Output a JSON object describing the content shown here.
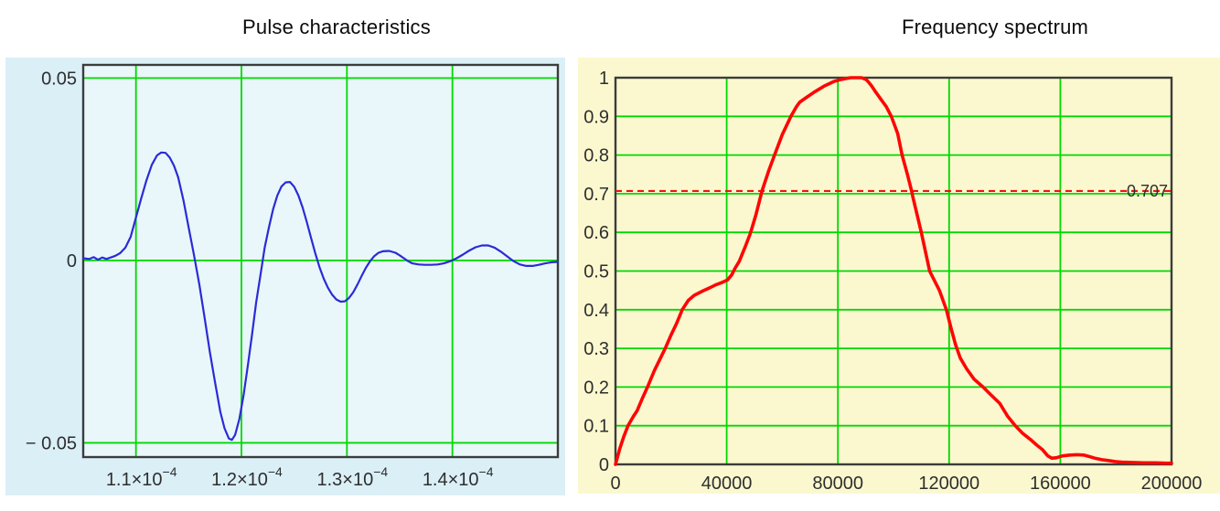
{
  "chart_data": [
    {
      "type": "line",
      "title": "Pulse characteristics",
      "xlabel": "",
      "ylabel": "",
      "legend": "none",
      "grid": "on",
      "panel_bg": "#dbeff7",
      "plot_bg": "#e9f7fa",
      "grid_color": "#00d900",
      "border_color": "#3c3c3c",
      "x_range": [
        1.05,
        1.5
      ],
      "y_range": [
        -0.0539,
        0.0536
      ],
      "x_gridlines": [
        1.1,
        1.2,
        1.3,
        1.4
      ],
      "y_gridlines": [
        0.05,
        0,
        -0.05
      ],
      "x_ticks": [
        {
          "v": 1.1,
          "base": "1.1×10",
          "sup": "−4"
        },
        {
          "v": 1.2,
          "base": "1.2×10",
          "sup": "−4"
        },
        {
          "v": 1.3,
          "base": "1.3×10",
          "sup": "−4"
        },
        {
          "v": 1.4,
          "base": "1.4×10",
          "sup": "−4"
        }
      ],
      "y_ticks": [
        {
          "v": 0.05,
          "label": "0.05"
        },
        {
          "v": 0,
          "label": "0"
        },
        {
          "v": -0.05,
          "label": "− 0.05"
        }
      ],
      "series": [
        {
          "name": "pulse",
          "color": "#2b2bd6",
          "width": 2.2,
          "points": [
            [
              1.05,
              0.0006
            ],
            [
              1.056,
              0.0004
            ],
            [
              1.06,
              0.0009
            ],
            [
              1.064,
              0.0002
            ],
            [
              1.068,
              0.0008
            ],
            [
              1.072,
              0.0004
            ],
            [
              1.076,
              0.0008
            ],
            [
              1.08,
              0.0012
            ],
            [
              1.085,
              0.002
            ],
            [
              1.09,
              0.0035
            ],
            [
              1.095,
              0.0065
            ],
            [
              1.1,
              0.0118
            ],
            [
              1.105,
              0.017
            ],
            [
              1.11,
              0.022
            ],
            [
              1.115,
              0.0262
            ],
            [
              1.12,
              0.0288
            ],
            [
              1.124,
              0.0296
            ],
            [
              1.128,
              0.0295
            ],
            [
              1.132,
              0.0282
            ],
            [
              1.136,
              0.026
            ],
            [
              1.14,
              0.0228
            ],
            [
              1.145,
              0.0165
            ],
            [
              1.15,
              0.009
            ],
            [
              1.155,
              0.0015
            ],
            [
              1.16,
              -0.0065
            ],
            [
              1.165,
              -0.0155
            ],
            [
              1.17,
              -0.025
            ],
            [
              1.175,
              -0.0335
            ],
            [
              1.18,
              -0.0415
            ],
            [
              1.184,
              -0.046
            ],
            [
              1.188,
              -0.0488
            ],
            [
              1.191,
              -0.0492
            ],
            [
              1.194,
              -0.0478
            ],
            [
              1.198,
              -0.0435
            ],
            [
              1.202,
              -0.037
            ],
            [
              1.206,
              -0.029
            ],
            [
              1.21,
              -0.0205
            ],
            [
              1.214,
              -0.0115
            ],
            [
              1.218,
              -0.004
            ],
            [
              1.222,
              0.0035
            ],
            [
              1.226,
              0.009
            ],
            [
              1.23,
              0.014
            ],
            [
              1.234,
              0.0178
            ],
            [
              1.238,
              0.0203
            ],
            [
              1.242,
              0.0214
            ],
            [
              1.246,
              0.0215
            ],
            [
              1.25,
              0.0202
            ],
            [
              1.254,
              0.0178
            ],
            [
              1.258,
              0.0145
            ],
            [
              1.262,
              0.0105
            ],
            [
              1.266,
              0.0062
            ],
            [
              1.27,
              0.002
            ],
            [
              1.274,
              -0.0018
            ],
            [
              1.278,
              -0.005
            ],
            [
              1.282,
              -0.0075
            ],
            [
              1.286,
              -0.0094
            ],
            [
              1.29,
              -0.0107
            ],
            [
              1.294,
              -0.0113
            ],
            [
              1.298,
              -0.0112
            ],
            [
              1.302,
              -0.0103
            ],
            [
              1.306,
              -0.0087
            ],
            [
              1.31,
              -0.0066
            ],
            [
              1.314,
              -0.0042
            ],
            [
              1.318,
              -0.002
            ],
            [
              1.322,
              -0.0002
            ],
            [
              1.326,
              0.0012
            ],
            [
              1.33,
              0.0021
            ],
            [
              1.334,
              0.0025
            ],
            [
              1.34,
              0.0026
            ],
            [
              1.346,
              0.0021
            ],
            [
              1.35,
              0.0014
            ],
            [
              1.354,
              0.0006
            ],
            [
              1.358,
              -0.0002
            ],
            [
              1.362,
              -0.0008
            ],
            [
              1.368,
              -0.0011
            ],
            [
              1.374,
              -0.0012
            ],
            [
              1.38,
              -0.0012
            ],
            [
              1.386,
              -0.0011
            ],
            [
              1.392,
              -0.0008
            ],
            [
              1.398,
              -0.0002
            ],
            [
              1.404,
              0.0006
            ],
            [
              1.41,
              0.0016
            ],
            [
              1.416,
              0.0027
            ],
            [
              1.422,
              0.0036
            ],
            [
              1.428,
              0.0041
            ],
            [
              1.434,
              0.0041
            ],
            [
              1.44,
              0.0035
            ],
            [
              1.446,
              0.0024
            ],
            [
              1.452,
              0.0011
            ],
            [
              1.458,
              -0.0002
            ],
            [
              1.464,
              -0.0011
            ],
            [
              1.47,
              -0.0015
            ],
            [
              1.476,
              -0.0015
            ],
            [
              1.482,
              -0.0012
            ],
            [
              1.488,
              -0.0008
            ],
            [
              1.494,
              -0.0005
            ],
            [
              1.5,
              -0.0004
            ]
          ]
        }
      ]
    },
    {
      "type": "line",
      "title": "Frequency spectrum",
      "xlabel": "",
      "ylabel": "",
      "legend": "none",
      "grid": "on",
      "panel_bg": "#fbf8cf",
      "plot_bg": "#fbf8cf",
      "grid_color": "#00d900",
      "border_color": "#3c3c3c",
      "x_range": [
        0,
        200000
      ],
      "y_range": [
        0,
        1
      ],
      "x_gridlines": [
        40000,
        80000,
        120000,
        160000
      ],
      "y_gridlines": [
        0.1,
        0.2,
        0.3,
        0.4,
        0.5,
        0.6,
        0.7,
        0.8,
        0.9
      ],
      "x_ticks": [
        {
          "v": 0,
          "label": "0"
        },
        {
          "v": 40000,
          "label": "40000"
        },
        {
          "v": 80000,
          "label": "80000"
        },
        {
          "v": 120000,
          "label": "120000"
        },
        {
          "v": 160000,
          "label": "160000"
        },
        {
          "v": 200000,
          "label": "200000"
        }
      ],
      "y_ticks": [
        {
          "v": 1,
          "label": "1"
        },
        {
          "v": 0.9,
          "label": "0.9"
        },
        {
          "v": 0.8,
          "label": "0.8"
        },
        {
          "v": 0.7,
          "label": "0.7"
        },
        {
          "v": 0.6,
          "label": "0.6"
        },
        {
          "v": 0.5,
          "label": "0.5"
        },
        {
          "v": 0.4,
          "label": "0.4"
        },
        {
          "v": 0.3,
          "label": "0.3"
        },
        {
          "v": 0.2,
          "label": "0.2"
        },
        {
          "v": 0.1,
          "label": "0.1"
        },
        {
          "v": 0,
          "label": "0"
        }
      ],
      "ref_line": {
        "value": 0.707,
        "label": "0.707",
        "color": "#f21313",
        "label_color": "#1e1e1e",
        "width": 2.2,
        "dash": "7,5"
      },
      "series": [
        {
          "name": "spectrum",
          "color": "#ff0505",
          "width": 3.6,
          "points": [
            [
              0,
              0
            ],
            [
              1500,
              0.04
            ],
            [
              3000,
              0.072
            ],
            [
              4500,
              0.1
            ],
            [
              6500,
              0.125
            ],
            [
              7800,
              0.139
            ],
            [
              9500,
              0.168
            ],
            [
              11500,
              0.2
            ],
            [
              14000,
              0.243
            ],
            [
              16000,
              0.272
            ],
            [
              17900,
              0.3
            ],
            [
              20000,
              0.335
            ],
            [
              22000,
              0.365
            ],
            [
              24000,
              0.4
            ],
            [
              26200,
              0.424
            ],
            [
              28300,
              0.437
            ],
            [
              31500,
              0.449
            ],
            [
              34000,
              0.457
            ],
            [
              36000,
              0.464
            ],
            [
              38500,
              0.471
            ],
            [
              40300,
              0.477
            ],
            [
              41800,
              0.49
            ],
            [
              43000,
              0.507
            ],
            [
              44500,
              0.525
            ],
            [
              46500,
              0.56
            ],
            [
              48500,
              0.597
            ],
            [
              50500,
              0.645
            ],
            [
              52700,
              0.707
            ],
            [
              55000,
              0.757
            ],
            [
              57200,
              0.8
            ],
            [
              60000,
              0.853
            ],
            [
              63100,
              0.9
            ],
            [
              65000,
              0.924
            ],
            [
              66300,
              0.937
            ],
            [
              68500,
              0.948
            ],
            [
              71500,
              0.963
            ],
            [
              75000,
              0.978
            ],
            [
              78500,
              0.99
            ],
            [
              81500,
              0.996
            ],
            [
              84600,
              1.0
            ],
            [
              88500,
              1.0
            ],
            [
              90200,
              0.995
            ],
            [
              91100,
              0.988
            ],
            [
              92000,
              0.98
            ],
            [
              93400,
              0.965
            ],
            [
              95400,
              0.945
            ],
            [
              97400,
              0.925
            ],
            [
              99200,
              0.9
            ],
            [
              101500,
              0.855
            ],
            [
              103100,
              0.8
            ],
            [
              105000,
              0.75
            ],
            [
              106500,
              0.707
            ],
            [
              107000,
              0.69
            ],
            [
              110000,
              0.6
            ],
            [
              113000,
              0.5
            ],
            [
              116500,
              0.45
            ],
            [
              119000,
              0.4
            ],
            [
              120800,
              0.35
            ],
            [
              122300,
              0.31
            ],
            [
              124000,
              0.275
            ],
            [
              126300,
              0.247
            ],
            [
              129000,
              0.22
            ],
            [
              132200,
              0.2
            ],
            [
              135000,
              0.18
            ],
            [
              138200,
              0.158
            ],
            [
              141000,
              0.125
            ],
            [
              143800,
              0.1
            ],
            [
              146500,
              0.08
            ],
            [
              149300,
              0.064
            ],
            [
              151500,
              0.05
            ],
            [
              153600,
              0.038
            ],
            [
              155500,
              0.022
            ],
            [
              156900,
              0.016
            ],
            [
              158500,
              0.017
            ],
            [
              160800,
              0.022
            ],
            [
              163500,
              0.024
            ],
            [
              166000,
              0.025
            ],
            [
              168400,
              0.024
            ],
            [
              170500,
              0.02
            ],
            [
              172400,
              0.016
            ],
            [
              175000,
              0.012
            ],
            [
              177300,
              0.01
            ],
            [
              180000,
              0.007
            ],
            [
              182200,
              0.006
            ],
            [
              186000,
              0.005
            ],
            [
              190000,
              0.004
            ],
            [
              194000,
              0.004
            ],
            [
              198000,
              0.003
            ],
            [
              200000,
              0.003
            ]
          ]
        }
      ]
    }
  ]
}
